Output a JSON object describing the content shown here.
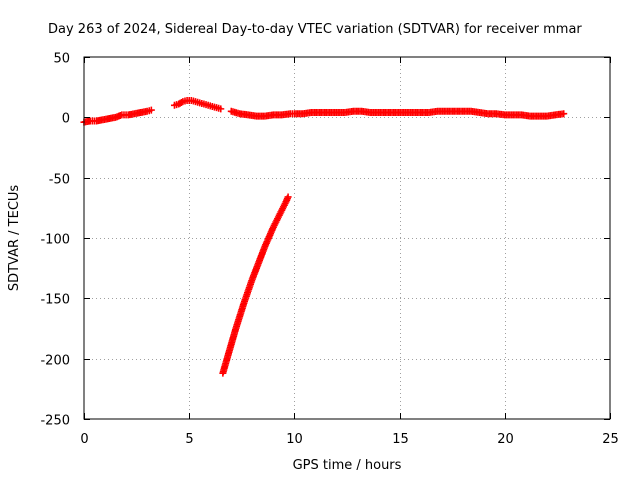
{
  "chart_data": {
    "type": "scatter",
    "title": "Day 263 of 2024, Sidereal Day-to-day VTEC variation (SDTVAR) for receiver mmar",
    "xlabel": "GPS time / hours",
    "ylabel": "SDTVAR / TECUs",
    "xlim": [
      0,
      25
    ],
    "ylim": [
      -250,
      50
    ],
    "xticks": [
      0,
      5,
      10,
      15,
      20,
      25
    ],
    "yticks": [
      50,
      0,
      -50,
      -100,
      -150,
      -200,
      -250
    ],
    "xtick_labels": [
      "0",
      "5",
      "10",
      "15",
      "20",
      "25"
    ],
    "ytick_labels": [
      "50",
      "0",
      "-50",
      "-100",
      "-150",
      "-200",
      "-250"
    ],
    "grid": true,
    "legend": null,
    "marker": "plus",
    "color": "#ff0000",
    "series": [
      {
        "name": "SDTVAR",
        "segments": [
          {
            "x": [
              0.0,
              0.3,
              0.6,
              0.9,
              1.2,
              1.5,
              1.8,
              2.1,
              2.4,
              2.7,
              3.0,
              3.2
            ],
            "y": [
              -4,
              -3,
              -3,
              -2,
              -1,
              0,
              2,
              2,
              3,
              4,
              5,
              6
            ]
          },
          {
            "x": [
              4.3,
              4.5,
              4.7,
              4.9,
              5.1,
              5.3,
              5.5,
              5.7,
              5.9,
              6.1,
              6.3,
              6.5
            ],
            "y": [
              10,
              11,
              13,
              14,
              14,
              13,
              12,
              11,
              10,
              9,
              8,
              7
            ]
          },
          {
            "x": [
              7.0,
              7.4,
              7.8,
              8.2,
              8.6,
              9.0,
              9.4,
              9.8,
              10.0,
              10.4,
              10.8,
              11.2,
              11.6,
              12.0,
              12.4,
              12.8,
              13.2,
              13.6,
              14.0,
              14.4,
              14.8,
              15.2,
              15.6,
              16.0,
              16.4,
              16.8,
              17.2,
              17.6,
              18.0,
              18.4,
              18.8,
              19.2,
              19.6,
              20.0,
              20.4,
              20.8,
              21.2,
              21.6,
              22.0,
              22.4,
              22.8
            ],
            "y": [
              5,
              3,
              2,
              1,
              1,
              2,
              2,
              3,
              3,
              3,
              4,
              4,
              4,
              4,
              4,
              5,
              5,
              4,
              4,
              4,
              4,
              4,
              4,
              4,
              4,
              5,
              5,
              5,
              5,
              5,
              4,
              3,
              3,
              2,
              2,
              2,
              1,
              1,
              1,
              2,
              3
            ]
          },
          {
            "x": [
              6.6,
              6.8,
              7.0,
              7.2,
              7.4,
              7.6,
              7.8,
              8.0,
              8.2,
              8.4,
              8.6,
              8.8,
              9.0,
              9.2,
              9.4,
              9.6,
              9.7
            ],
            "y": [
              -212,
              -200,
              -188,
              -176,
              -165,
              -154,
              -144,
              -134,
              -125,
              -116,
              -107,
              -99,
              -91,
              -84,
              -77,
              -70,
              -66
            ]
          }
        ]
      }
    ]
  }
}
